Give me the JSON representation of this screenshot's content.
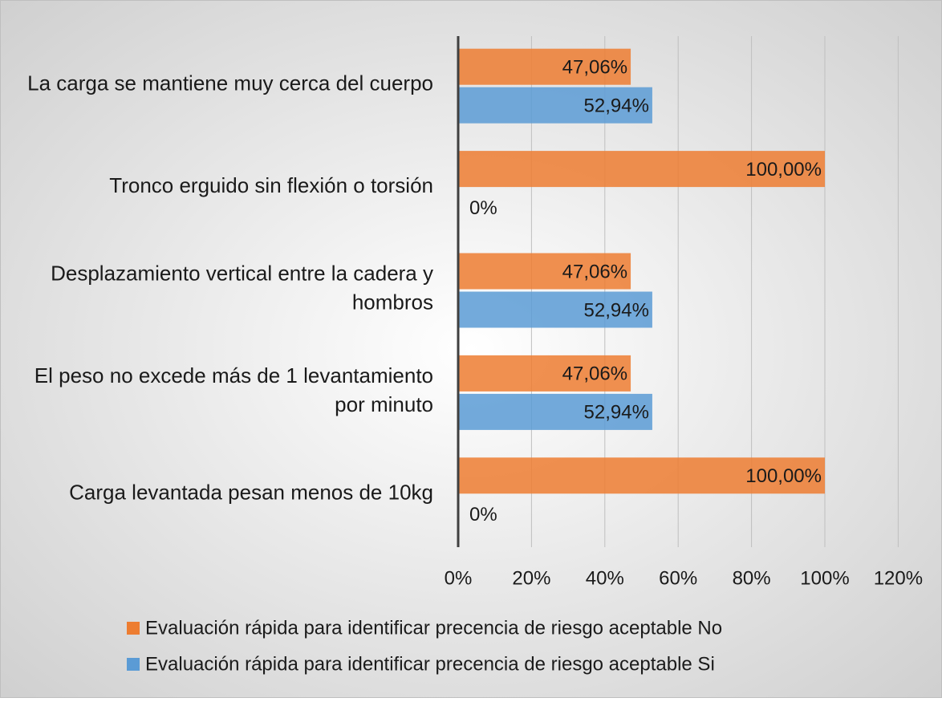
{
  "chart_data": {
    "type": "bar",
    "orientation": "horizontal",
    "categories": [
      "La carga se mantiene muy cerca del cuerpo",
      "Tronco erguido sin flexión o torsión",
      "Desplazamiento vertical entre la cadera y hombros",
      "El peso no excede más de 1 levantamiento por minuto",
      "Carga levantada pesan menos de 10kg"
    ],
    "series": [
      {
        "name": "Evaluación rápida para identificar precencia de riesgo aceptable No",
        "color": "#ed7d31",
        "values": [
          47.06,
          100,
          47.06,
          47.06,
          100
        ],
        "value_labels": [
          "47,06%",
          "100,00%",
          "47,06%",
          "47,06%",
          "100,00%"
        ]
      },
      {
        "name": "Evaluación rápida para identificar precencia de riesgo aceptable Si",
        "color": "#5b9bd5",
        "values": [
          52.94,
          0,
          52.94,
          52.94,
          0
        ],
        "value_labels": [
          "52,94%",
          "0%",
          "52,94%",
          "52,94%",
          "0%"
        ]
      }
    ],
    "xlim": [
      0,
      120
    ],
    "xticks": [
      {
        "value": 0,
        "label": "0%"
      },
      {
        "value": 20,
        "label": "20%"
      },
      {
        "value": 40,
        "label": "40%"
      },
      {
        "value": 60,
        "label": "60%"
      },
      {
        "value": 80,
        "label": "80%"
      },
      {
        "value": 100,
        "label": "100%"
      },
      {
        "value": 120,
        "label": "120%"
      }
    ],
    "grid": true,
    "legend": "bottom"
  }
}
